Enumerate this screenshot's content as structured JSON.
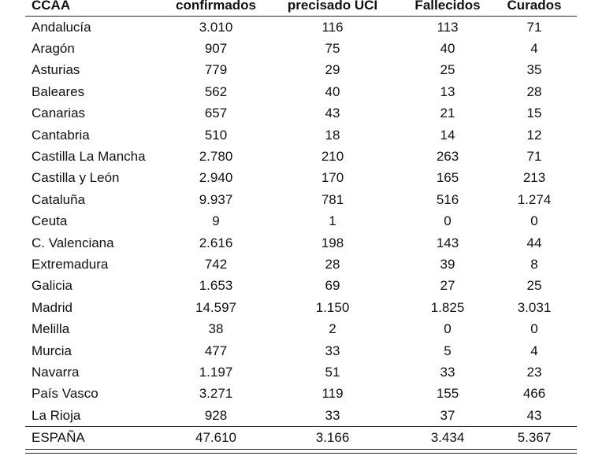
{
  "headers": [
    "CCAA",
    "confirmados",
    "precisado UCI",
    "Fallecidos",
    "Curados"
  ],
  "rows": [
    [
      "Andalucía",
      "3.010",
      "116",
      "113",
      "71"
    ],
    [
      "Aragón",
      "907",
      "75",
      "40",
      "4"
    ],
    [
      "Asturias",
      "779",
      "29",
      "25",
      "35"
    ],
    [
      "Baleares",
      "562",
      "40",
      "13",
      "28"
    ],
    [
      "Canarias",
      "657",
      "43",
      "21",
      "15"
    ],
    [
      "Cantabria",
      "510",
      "18",
      "14",
      "12"
    ],
    [
      "Castilla La Mancha",
      "2.780",
      "210",
      "263",
      "71"
    ],
    [
      "Castilla y León",
      "2.940",
      "170",
      "165",
      "213"
    ],
    [
      "Cataluña",
      "9.937",
      "781",
      "516",
      "1.274"
    ],
    [
      "Ceuta",
      "9",
      "1",
      "0",
      "0"
    ],
    [
      "C. Valenciana",
      "2.616",
      "198",
      "143",
      "44"
    ],
    [
      "Extremadura",
      "742",
      "28",
      "39",
      "8"
    ],
    [
      "Galicia",
      "1.653",
      "69",
      "27",
      "25"
    ],
    [
      "Madrid",
      "14.597",
      "1.150",
      "1.825",
      "3.031"
    ],
    [
      "Melilla",
      "38",
      "2",
      "0",
      "0"
    ],
    [
      "Murcia",
      "477",
      "33",
      "5",
      "4"
    ],
    [
      "Navarra",
      "1.197",
      "51",
      "33",
      "23"
    ],
    [
      "País Vasco",
      "3.271",
      "119",
      "155",
      "466"
    ],
    [
      "La Rioja",
      "928",
      "33",
      "37",
      "43"
    ]
  ],
  "total": [
    "ESPAÑA",
    "47.610",
    "3.166",
    "3.434",
    "5.367"
  ]
}
